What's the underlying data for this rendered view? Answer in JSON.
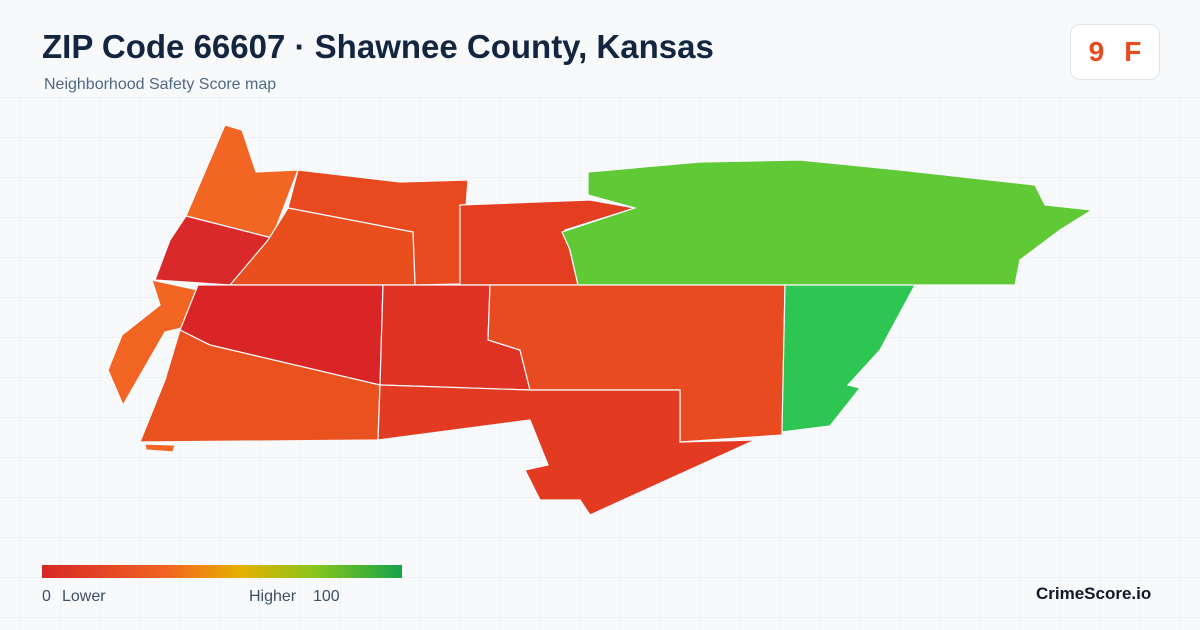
{
  "header": {
    "title": "ZIP Code 66607 · Shawnee County, Kansas",
    "subtitle": "Neighborhood Safety Score map"
  },
  "score": {
    "value": 9,
    "grade": "F"
  },
  "legend": {
    "min": 0,
    "min_label": "Lower",
    "max_label": "Higher",
    "max": 100
  },
  "brand": "CrimeScore.io"
}
